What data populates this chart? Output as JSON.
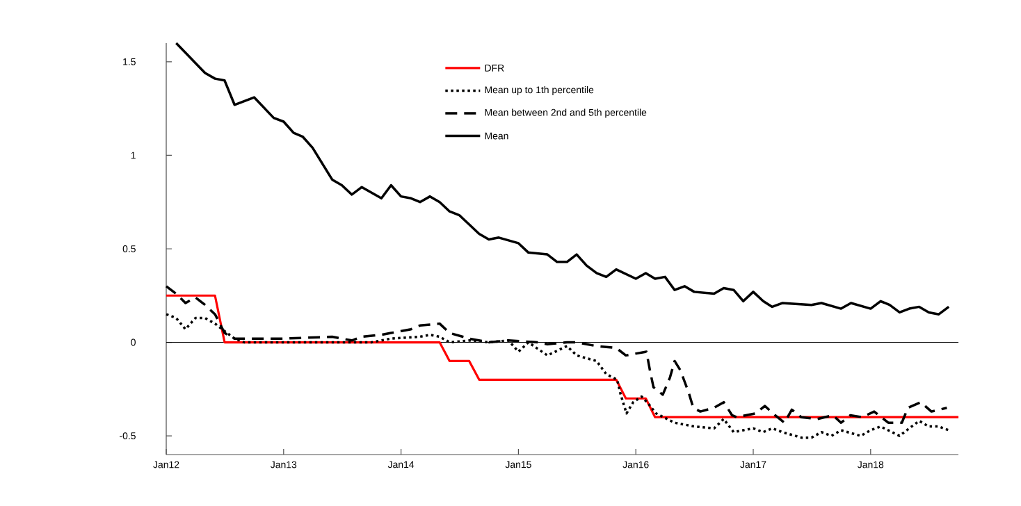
{
  "chart_data": {
    "type": "line",
    "xlim": [
      "2012-01-01",
      "2018-10-01"
    ],
    "ylim": [
      -0.6,
      1.6
    ],
    "xticks": [
      {
        "value": "2012-01-01",
        "label": "Jan12"
      },
      {
        "value": "2013-01-01",
        "label": "Jan13"
      },
      {
        "value": "2014-01-01",
        "label": "Jan14"
      },
      {
        "value": "2015-01-01",
        "label": "Jan15"
      },
      {
        "value": "2016-01-01",
        "label": "Jan16"
      },
      {
        "value": "2017-01-01",
        "label": "Jan17"
      },
      {
        "value": "2018-01-01",
        "label": "Jan18"
      }
    ],
    "yticks": [
      -0.5,
      0,
      0.5,
      1,
      1.5
    ],
    "grid": false,
    "legend": "top",
    "marker": "none",
    "ref_lines": [
      {
        "axis": "y",
        "value": 0,
        "color": "#000000"
      }
    ],
    "series": [
      {
        "name": "DFR",
        "color": "#ff0000",
        "line_style": "solid",
        "x": [
          "2012-01-01",
          "2012-06-01",
          "2012-07-01",
          "2014-05-01",
          "2014-06-01",
          "2014-08-01",
          "2014-09-01",
          "2015-11-01",
          "2015-12-01",
          "2016-02-01",
          "2016-03-01",
          "2018-10-01"
        ],
        "values": [
          0.25,
          0.25,
          0,
          0,
          -0.1,
          -0.1,
          -0.2,
          -0.2,
          -0.3,
          -0.3,
          -0.4,
          -0.4
        ]
      },
      {
        "name": "Mean up to 1th percentile",
        "color": "#000000",
        "line_style": "dotted",
        "x": [
          "2012-01-01",
          "2012-02-01",
          "2012-03-01",
          "2012-04-01",
          "2012-05-01",
          "2012-06-01",
          "2012-07-01",
          "2012-08-01",
          "2012-09-01",
          "2013-03-01",
          "2013-10-01",
          "2013-12-01",
          "2014-03-01",
          "2014-04-01",
          "2014-05-01",
          "2014-06-01",
          "2014-08-01",
          "2014-10-01",
          "2014-12-01",
          "2015-01-01",
          "2015-02-01",
          "2015-04-01",
          "2015-06-01",
          "2015-07-01",
          "2015-09-01",
          "2015-10-01",
          "2015-11-04",
          "2015-11-15",
          "2015-12-03",
          "2015-12-24",
          "2016-01-19",
          "2016-02-10",
          "2016-03-04",
          "2016-05-01",
          "2016-07-01",
          "2016-09-01",
          "2016-10-01",
          "2016-11-01",
          "2016-12-01",
          "2017-01-01",
          "2017-02-01",
          "2017-03-01",
          "2017-04-01",
          "2017-06-01",
          "2017-07-01",
          "2017-08-01",
          "2017-09-01",
          "2017-10-01",
          "2017-12-01",
          "2018-01-01",
          "2018-02-01",
          "2018-04-01",
          "2018-05-01",
          "2018-06-01",
          "2018-07-01",
          "2018-08-01",
          "2018-09-01"
        ],
        "values": [
          0.15,
          0.13,
          0.07,
          0.13,
          0.13,
          0.1,
          0.06,
          0.02,
          0.0,
          0.0,
          0.0,
          0.02,
          0.03,
          0.04,
          0.03,
          0.0,
          0.01,
          0.0,
          0.01,
          -0.05,
          0.0,
          -0.07,
          -0.02,
          -0.07,
          -0.1,
          -0.17,
          -0.2,
          -0.28,
          -0.38,
          -0.32,
          -0.29,
          -0.33,
          -0.38,
          -0.43,
          -0.45,
          -0.46,
          -0.41,
          -0.48,
          -0.47,
          -0.46,
          -0.48,
          -0.46,
          -0.48,
          -0.51,
          -0.51,
          -0.48,
          -0.5,
          -0.47,
          -0.5,
          -0.47,
          -0.45,
          -0.5,
          -0.46,
          -0.42,
          -0.45,
          -0.45,
          -0.47
        ]
      },
      {
        "name": "Mean between 2nd and 5th percentile",
        "color": "#000000",
        "line_style": "dashed",
        "x": [
          "2012-01-01",
          "2012-02-01",
          "2012-03-01",
          "2012-04-01",
          "2012-05-01",
          "2012-06-01",
          "2012-07-01",
          "2012-08-01",
          "2012-10-01",
          "2013-01-01",
          "2013-06-01",
          "2013-08-01",
          "2013-09-01",
          "2013-11-01",
          "2013-12-01",
          "2014-02-01",
          "2014-03-01",
          "2014-05-01",
          "2014-06-01",
          "2014-08-01",
          "2014-10-01",
          "2014-12-01",
          "2015-03-01",
          "2015-04-01",
          "2015-06-01",
          "2015-07-01",
          "2015-09-01",
          "2015-11-01",
          "2015-12-01",
          "2016-02-03",
          "2016-02-14",
          "2016-02-25",
          "2016-03-25",
          "2016-04-16",
          "2016-05-01",
          "2016-05-19",
          "2016-06-14",
          "2016-06-28",
          "2016-07-20",
          "2016-09-01",
          "2016-10-01",
          "2016-10-27",
          "2016-11-10",
          "2017-01-08",
          "2017-02-06",
          "2017-03-10",
          "2017-04-08",
          "2017-05-01",
          "2017-05-30",
          "2017-07-20",
          "2017-09-06",
          "2017-10-01",
          "2017-10-30",
          "2017-12-06",
          "2018-01-12",
          "2018-02-25",
          "2018-04-08",
          "2018-04-27",
          "2018-06-06",
          "2018-07-09",
          "2018-08-26"
        ],
        "values": [
          0.3,
          0.26,
          0.21,
          0.24,
          0.2,
          0.15,
          0.05,
          0.02,
          0.02,
          0.02,
          0.03,
          0.01,
          0.03,
          0.04,
          0.05,
          0.07,
          0.09,
          0.1,
          0.05,
          0.02,
          0.0,
          0.01,
          0.0,
          -0.01,
          0.0,
          0.0,
          -0.02,
          -0.03,
          -0.07,
          -0.05,
          -0.15,
          -0.24,
          -0.28,
          -0.19,
          -0.1,
          -0.15,
          -0.27,
          -0.35,
          -0.37,
          -0.35,
          -0.32,
          -0.39,
          -0.4,
          -0.38,
          -0.34,
          -0.39,
          -0.43,
          -0.36,
          -0.4,
          -0.41,
          -0.39,
          -0.43,
          -0.39,
          -0.4,
          -0.37,
          -0.43,
          -0.43,
          -0.35,
          -0.32,
          -0.37,
          -0.35
        ]
      },
      {
        "name": "Mean",
        "color": "#000000",
        "line_style": "solid",
        "x": [
          "2012-02-01",
          "2012-05-01",
          "2012-06-01",
          "2012-07-01",
          "2012-08-01",
          "2012-10-01",
          "2012-12-01",
          "2013-01-01",
          "2013-02-01",
          "2013-03-01",
          "2013-04-01",
          "2013-06-01",
          "2013-07-01",
          "2013-08-01",
          "2013-09-01",
          "2013-11-01",
          "2013-12-01",
          "2014-01-01",
          "2014-02-01",
          "2014-03-01",
          "2014-04-01",
          "2014-05-01",
          "2014-06-01",
          "2014-07-01",
          "2014-09-01",
          "2014-10-01",
          "2014-11-01",
          "2015-01-01",
          "2015-02-01",
          "2015-04-01",
          "2015-05-01",
          "2015-06-01",
          "2015-07-01",
          "2015-08-01",
          "2015-09-01",
          "2015-10-01",
          "2015-11-01",
          "2016-01-01",
          "2016-02-01",
          "2016-03-01",
          "2016-04-01",
          "2016-05-01",
          "2016-06-01",
          "2016-07-01",
          "2016-09-01",
          "2016-10-01",
          "2016-11-01",
          "2016-12-01",
          "2017-01-01",
          "2017-02-01",
          "2017-03-01",
          "2017-04-01",
          "2017-07-01",
          "2017-08-01",
          "2017-10-01",
          "2017-11-01",
          "2018-01-01",
          "2018-02-01",
          "2018-03-01",
          "2018-04-01",
          "2018-05-01",
          "2018-06-01",
          "2018-07-01",
          "2018-08-01",
          "2018-09-01"
        ],
        "values": [
          1.6,
          1.44,
          1.41,
          1.4,
          1.27,
          1.31,
          1.2,
          1.18,
          1.12,
          1.1,
          1.04,
          0.87,
          0.84,
          0.79,
          0.83,
          0.77,
          0.84,
          0.78,
          0.77,
          0.75,
          0.78,
          0.75,
          0.7,
          0.68,
          0.58,
          0.55,
          0.56,
          0.53,
          0.48,
          0.47,
          0.43,
          0.43,
          0.47,
          0.41,
          0.37,
          0.35,
          0.39,
          0.34,
          0.37,
          0.34,
          0.35,
          0.28,
          0.3,
          0.27,
          0.26,
          0.29,
          0.28,
          0.22,
          0.27,
          0.22,
          0.19,
          0.21,
          0.2,
          0.21,
          0.18,
          0.21,
          0.18,
          0.22,
          0.2,
          0.16,
          0.18,
          0.19,
          0.16,
          0.15,
          0.19
        ]
      }
    ]
  }
}
